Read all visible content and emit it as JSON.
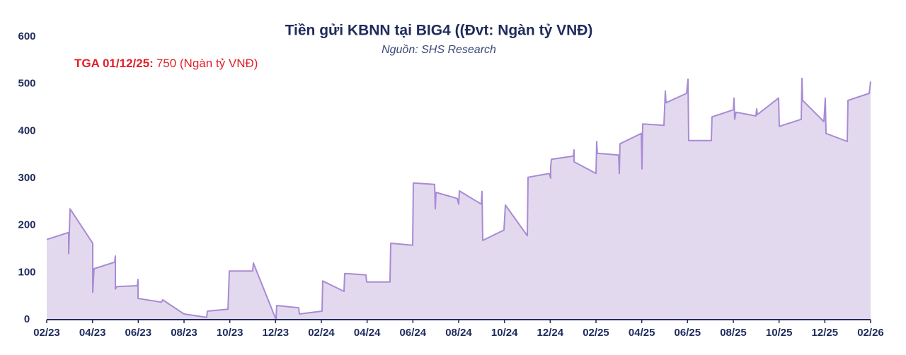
{
  "chart_data": {
    "type": "area",
    "title": "Tiền gửi KBNN tại BIG4 ((Đvt: Ngàn tỷ VNĐ)",
    "subtitle": "Nguồn: SHS Research",
    "annotation": {
      "label": "TGA 01/12/25:",
      "text": "750 (Ngàn tỷ VNĐ)"
    },
    "color": "#a88bd4",
    "fill": "#e3d9ee",
    "xlim": [
      0,
      36
    ],
    "xticks": [
      {
        "value": 0,
        "label": "02/23"
      },
      {
        "value": 2,
        "label": "04/23"
      },
      {
        "value": 4,
        "label": "06/23"
      },
      {
        "value": 6,
        "label": "08/23"
      },
      {
        "value": 8,
        "label": "10/23"
      },
      {
        "value": 10,
        "label": "12/23"
      },
      {
        "value": 12,
        "label": "02/24"
      },
      {
        "value": 14,
        "label": "04/24"
      },
      {
        "value": 16,
        "label": "06/24"
      },
      {
        "value": 18,
        "label": "08/24"
      },
      {
        "value": 20,
        "label": "10/24"
      },
      {
        "value": 22,
        "label": "12/24"
      },
      {
        "value": 24,
        "label": "02/25"
      },
      {
        "value": 26,
        "label": "04/25"
      },
      {
        "value": 28,
        "label": "06/25"
      },
      {
        "value": 30,
        "label": "08/25"
      },
      {
        "value": 32,
        "label": "10/25"
      },
      {
        "value": 34,
        "label": "12/25"
      },
      {
        "value": 36,
        "label": "02/26"
      }
    ],
    "ylim": [
      0,
      600
    ],
    "yticks": [
      0,
      100,
      200,
      300,
      400,
      500,
      600
    ],
    "x": [
      0,
      0.96,
      0.96,
      1.02,
      2.01,
      2.01,
      2.07,
      2.97,
      3.0,
      3.0,
      3.06,
      3.96,
      3.99,
      3.99,
      5.01,
      5.07,
      6.0,
      6.99,
      7.02,
      7.92,
      7.98,
      9.0,
      9.03,
      10.02,
      10.05,
      11.01,
      11.04,
      12.03,
      12.06,
      12.99,
      13.02,
      13.95,
      13.98,
      15.0,
      15.03,
      15.99,
      16.02,
      16.95,
      16.98,
      17.01,
      17.94,
      18.0,
      18.03,
      18.99,
      19.02,
      19.05,
      19.98,
      20.04,
      21.0,
      21.03,
      21.96,
      22.02,
      22.02,
      22.05,
      23.01,
      23.04,
      23.04,
      24.0,
      24.03,
      24.06,
      24.99,
      25.02,
      25.05,
      25.98,
      26.01,
      26.04,
      26.97,
      27.03,
      27.06,
      27.96,
      28.02,
      28.05,
      29.04,
      29.07,
      30.0,
      30.03,
      30.06,
      30.12,
      30.99,
      31.02,
      31.05,
      31.98,
      32.01,
      32.97,
      33.0,
      33.03,
      33.96,
      34.02,
      34.05,
      34.98,
      35.01,
      35.94,
      36.0
    ],
    "values": [
      170,
      185,
      140,
      235,
      162,
      58,
      108,
      122,
      135,
      65,
      70,
      72,
      85,
      45,
      37,
      42,
      12,
      5,
      18,
      22,
      103,
      103,
      120,
      0,
      30,
      25,
      12,
      18,
      82,
      60,
      98,
      95,
      80,
      80,
      162,
      158,
      290,
      287,
      235,
      270,
      257,
      245,
      273,
      245,
      272,
      168,
      190,
      243,
      178,
      302,
      310,
      300,
      325,
      340,
      347,
      360,
      335,
      310,
      378,
      353,
      349,
      310,
      373,
      395,
      320,
      415,
      412,
      485,
      460,
      480,
      510,
      380,
      380,
      430,
      445,
      470,
      425,
      440,
      432,
      447,
      435,
      470,
      410,
      425,
      512,
      465,
      420,
      470,
      395,
      378,
      465,
      480,
      505
    ]
  }
}
